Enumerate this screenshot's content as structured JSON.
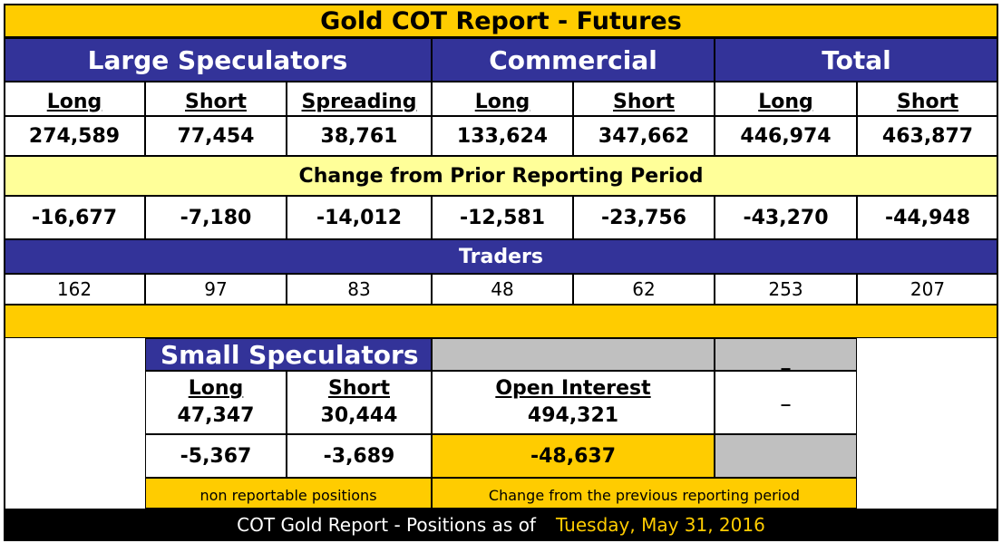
{
  "title": "Gold COT Report - Futures",
  "groups": {
    "large_speculators": "Large Speculators",
    "commercial": "Commercial",
    "total": "Total"
  },
  "columns": [
    "Long",
    "Short",
    "Spreading",
    "Long",
    "Short",
    "Long",
    "Short"
  ],
  "positions": [
    "274,589",
    "77,454",
    "38,761",
    "133,624",
    "347,662",
    "446,974",
    "463,877"
  ],
  "change_header": "Change from Prior Reporting Period",
  "changes": [
    "-16,677",
    "-7,180",
    "-14,012",
    "-12,581",
    "-23,756",
    "-43,270",
    "-44,948"
  ],
  "traders_header": "Traders",
  "traders": [
    "162",
    "97",
    "83",
    "48",
    "62",
    "253",
    "207"
  ],
  "small_speculators": {
    "title": "Small Speculators",
    "long_label": "Long",
    "long_value": "47,347",
    "short_label": "Short",
    "short_value": "30,444",
    "long_change": "-5,367",
    "short_change": "-3,689",
    "note": "non reportable positions",
    "dash1": "_",
    "dash2": "_"
  },
  "open_interest": {
    "label": "Open Interest",
    "value": "494,321",
    "change": "-48,637",
    "note": "Change from the previous reporting period"
  },
  "footer": {
    "text": "COT Gold Report - Positions as of",
    "date": "Tuesday, May 31, 2016"
  },
  "colors": {
    "gold": "#FFCC00",
    "navy": "#333399",
    "light_yellow": "#FFFF99",
    "grey": "#C0C0C0"
  }
}
